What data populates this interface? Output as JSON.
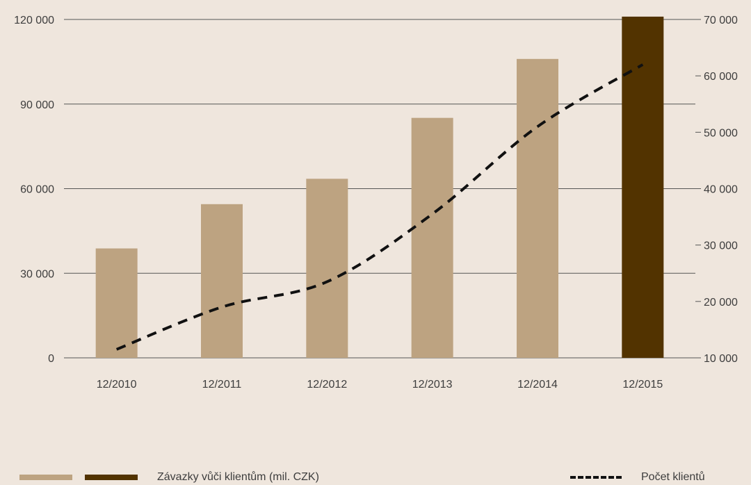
{
  "chart_data": {
    "type": "bar",
    "categories": [
      "12/2010",
      "12/2011",
      "12/2012",
      "12/2013",
      "12/2014",
      "12/2015"
    ],
    "series": [
      {
        "name": "Závazky vůči klientům (mil. CZK)",
        "kind": "bar",
        "axis": "left",
        "values": [
          38800,
          54500,
          63500,
          85100,
          106000,
          121000
        ],
        "colors": [
          "#bda381",
          "#bda381",
          "#bda381",
          "#bda381",
          "#bda381",
          "#523300"
        ]
      },
      {
        "name": "Počet klientů",
        "kind": "line",
        "style": "dashed",
        "axis": "right",
        "color": "#111111",
        "values": [
          11500,
          19000,
          23500,
          35500,
          51000,
          62000
        ]
      }
    ],
    "y_left": {
      "ylim": [
        0,
        120000
      ],
      "ticks": [
        "0",
        "30 000",
        "60 000",
        "90 000",
        "120 000"
      ]
    },
    "y_right": {
      "ylim": [
        10000,
        70000
      ],
      "ticks": [
        "10 000",
        "20 000",
        "30 000",
        "40 000",
        "50 000",
        "60 000",
        "70 000"
      ]
    },
    "grid": true,
    "legend_placement": "bottom"
  },
  "legend": {
    "bars_label": "Závazky vůči klientům (mil. CZK)",
    "line_label": "Počet klientů",
    "bar_colors": [
      "#bda381",
      "#523300"
    ]
  }
}
